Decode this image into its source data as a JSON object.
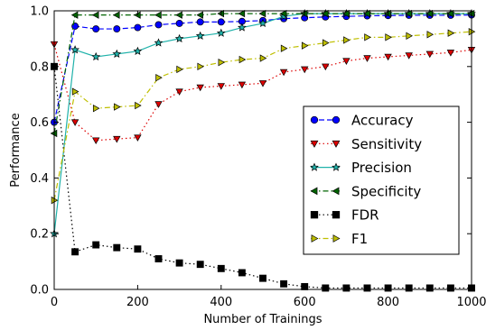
{
  "chart_data": {
    "type": "line",
    "title": "",
    "xlabel": "Number of Trainings",
    "ylabel": "Performance",
    "xlim": [
      0,
      1000
    ],
    "ylim": [
      0.0,
      1.0
    ],
    "xticks": [
      0,
      200,
      400,
      600,
      800,
      1000
    ],
    "yticks": [
      0.0,
      0.2,
      0.4,
      0.6,
      0.8,
      1.0
    ],
    "xtick_labels": [
      "0",
      "200",
      "400",
      "600",
      "800",
      "1000"
    ],
    "ytick_labels": [
      "0.0",
      "0.2",
      "0.4",
      "0.6",
      "0.8",
      "1.0"
    ],
    "grid": false,
    "legend_position": "center-right",
    "x": [
      0,
      50,
      100,
      150,
      200,
      250,
      300,
      350,
      400,
      450,
      500,
      550,
      600,
      650,
      700,
      750,
      800,
      850,
      900,
      950,
      1000
    ],
    "series": [
      {
        "name": "Accuracy",
        "color": "#0000ff",
        "marker": "circle",
        "linestyle": "dashed",
        "x": [
          0,
          50,
          100,
          150,
          200,
          250,
          300,
          350,
          400,
          450,
          500,
          550,
          600,
          650,
          700,
          750,
          800,
          850,
          900,
          950,
          1000
        ],
        "values": [
          0.6,
          0.945,
          0.935,
          0.935,
          0.94,
          0.95,
          0.955,
          0.96,
          0.96,
          0.962,
          0.965,
          0.972,
          0.975,
          0.978,
          0.98,
          0.982,
          0.983,
          0.984,
          0.984,
          0.984,
          0.985
        ]
      },
      {
        "name": "Sensitivity",
        "color": "#dd0000",
        "marker": "triangle-down",
        "linestyle": "dotted",
        "x": [
          0,
          50,
          100,
          150,
          200,
          250,
          300,
          350,
          400,
          450,
          500,
          550,
          600,
          650,
          700,
          750,
          800,
          850,
          900,
          950,
          1000
        ],
        "values": [
          0.88,
          0.6,
          0.535,
          0.54,
          0.545,
          0.665,
          0.71,
          0.725,
          0.73,
          0.735,
          0.74,
          0.78,
          0.79,
          0.8,
          0.82,
          0.83,
          0.835,
          0.84,
          0.845,
          0.85,
          0.86
        ]
      },
      {
        "name": "Precision",
        "color": "#20b2aa",
        "marker": "star",
        "linestyle": "solid",
        "x": [
          0,
          50,
          100,
          150,
          200,
          250,
          300,
          350,
          400,
          450,
          500,
          550,
          600,
          650,
          700,
          750,
          800,
          850,
          900,
          950,
          1000
        ],
        "values": [
          0.2,
          0.86,
          0.835,
          0.845,
          0.855,
          0.885,
          0.9,
          0.91,
          0.92,
          0.94,
          0.955,
          0.98,
          0.99,
          0.99,
          0.99,
          0.99,
          0.99,
          0.99,
          0.99,
          0.99,
          0.99
        ]
      },
      {
        "name": "Specificity",
        "color": "#006400",
        "marker": "triangle-left",
        "linestyle": "dashdot",
        "x": [
          0,
          50,
          100,
          150,
          200,
          250,
          300,
          350,
          400,
          450,
          500,
          550,
          600,
          650,
          700,
          750,
          800,
          850,
          900,
          950,
          1000
        ],
        "values": [
          0.56,
          0.985,
          0.985,
          0.985,
          0.985,
          0.985,
          0.985,
          0.985,
          0.99,
          0.99,
          0.99,
          0.99,
          0.99,
          0.99,
          0.99,
          0.99,
          0.99,
          0.99,
          0.99,
          0.99,
          0.99
        ]
      },
      {
        "name": "FDR",
        "color": "#000000",
        "marker": "square",
        "linestyle": "dotted",
        "x": [
          0,
          50,
          100,
          150,
          200,
          250,
          300,
          350,
          400,
          450,
          500,
          550,
          600,
          650,
          700,
          750,
          800,
          850,
          900,
          950,
          1000
        ],
        "values": [
          0.8,
          0.135,
          0.16,
          0.15,
          0.145,
          0.11,
          0.095,
          0.09,
          0.075,
          0.06,
          0.04,
          0.02,
          0.01,
          0.005,
          0.005,
          0.005,
          0.005,
          0.005,
          0.005,
          0.005,
          0.005
        ]
      },
      {
        "name": "F1",
        "color": "#bfbf00",
        "marker": "triangle-right",
        "linestyle": "dashdot",
        "x": [
          0,
          50,
          100,
          150,
          200,
          250,
          300,
          350,
          400,
          450,
          500,
          550,
          600,
          650,
          700,
          750,
          800,
          850,
          900,
          950,
          1000
        ],
        "values": [
          0.32,
          0.71,
          0.65,
          0.655,
          0.66,
          0.76,
          0.79,
          0.8,
          0.815,
          0.825,
          0.83,
          0.865,
          0.875,
          0.885,
          0.895,
          0.905,
          0.905,
          0.91,
          0.915,
          0.92,
          0.925
        ]
      }
    ]
  }
}
